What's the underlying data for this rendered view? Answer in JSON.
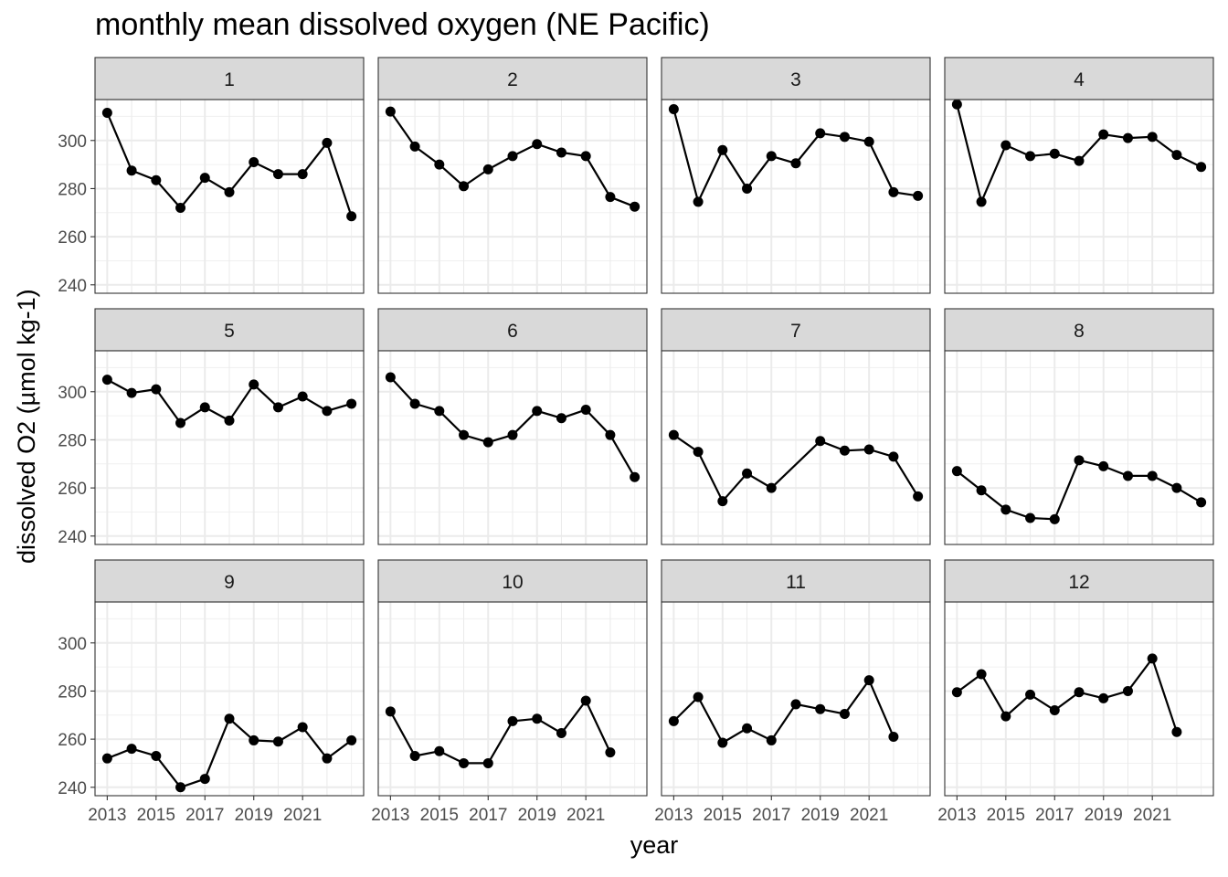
{
  "chart_data": {
    "type": "line",
    "title": "monthly mean dissolved oxygen (NE Pacific)",
    "xlabel": "year",
    "ylabel": "dissolved O2 (µmol kg-1)",
    "x": [
      2013,
      2014,
      2015,
      2016,
      2017,
      2018,
      2019,
      2020,
      2021,
      2022,
      2023
    ],
    "xticks": [
      2013,
      2015,
      2017,
      2019,
      2021
    ],
    "yticks": [
      240,
      260,
      280,
      300
    ],
    "xlim": [
      2012.5,
      2023.5
    ],
    "ylim": [
      236.5,
      317
    ],
    "grid": true,
    "markers": true,
    "facets": [
      {
        "label": "1",
        "x": [
          2013,
          2014,
          2015,
          2016,
          2017,
          2018,
          2019,
          2020,
          2021,
          2022,
          2023
        ],
        "values": [
          311.5,
          287.5,
          283.5,
          272,
          284.5,
          278.5,
          291,
          286,
          286,
          299,
          268.5
        ]
      },
      {
        "label": "2",
        "x": [
          2013,
          2014,
          2015,
          2016,
          2017,
          2018,
          2019,
          2020,
          2021,
          2022,
          2023
        ],
        "values": [
          312,
          297.5,
          290,
          281,
          288,
          293.5,
          298.5,
          295,
          293.5,
          276.5,
          272.5
        ]
      },
      {
        "label": "3",
        "x": [
          2013,
          2014,
          2015,
          2016,
          2017,
          2018,
          2019,
          2020,
          2021,
          2022,
          2023
        ],
        "values": [
          313,
          274.5,
          296,
          280,
          293.5,
          290.5,
          303,
          301.5,
          299.5,
          278.5,
          277
        ]
      },
      {
        "label": "4",
        "x": [
          2013,
          2014,
          2015,
          2016,
          2017,
          2018,
          2019,
          2020,
          2021,
          2022,
          2023
        ],
        "values": [
          315,
          274.5,
          298,
          293.5,
          294.5,
          291.5,
          302.5,
          301,
          301.5,
          294,
          289
        ]
      },
      {
        "label": "5",
        "x": [
          2013,
          2014,
          2015,
          2016,
          2017,
          2018,
          2019,
          2020,
          2021,
          2022,
          2023
        ],
        "values": [
          305,
          299.5,
          301,
          287,
          293.5,
          288,
          303,
          293.5,
          298,
          292,
          295
        ]
      },
      {
        "label": "6",
        "x": [
          2013,
          2014,
          2015,
          2016,
          2017,
          2018,
          2019,
          2020,
          2021,
          2022,
          2023
        ],
        "values": [
          306,
          295,
          292,
          282,
          279,
          282,
          292,
          289,
          292.5,
          282,
          264.5
        ]
      },
      {
        "label": "7",
        "x": [
          2013,
          2014,
          2015,
          2016,
          2017,
          2019,
          2020,
          2021,
          2022,
          2023
        ],
        "values": [
          282,
          275,
          254.5,
          266,
          260,
          279.5,
          275.5,
          276,
          273,
          256.5
        ]
      },
      {
        "label": "8",
        "x": [
          2013,
          2014,
          2015,
          2016,
          2017,
          2018,
          2019,
          2020,
          2021,
          2022,
          2023
        ],
        "values": [
          267,
          259,
          251,
          247.5,
          247,
          271.5,
          269,
          265,
          265,
          260,
          254
        ]
      },
      {
        "label": "9",
        "x": [
          2013,
          2014,
          2015,
          2016,
          2017,
          2018,
          2019,
          2020,
          2021,
          2022,
          2023
        ],
        "values": [
          252,
          256,
          253,
          240,
          243.5,
          268.5,
          259.5,
          259,
          265,
          252,
          259.5
        ]
      },
      {
        "label": "10",
        "x": [
          2013,
          2014,
          2015,
          2016,
          2017,
          2018,
          2019,
          2020,
          2021,
          2022
        ],
        "values": [
          271.5,
          253,
          255,
          250,
          250,
          267.5,
          268.5,
          262.5,
          276,
          254.5
        ]
      },
      {
        "label": "11",
        "x": [
          2013,
          2014,
          2015,
          2016,
          2017,
          2018,
          2019,
          2020,
          2021,
          2022
        ],
        "values": [
          267.5,
          277.5,
          258.5,
          264.5,
          259.5,
          274.5,
          272.5,
          270.5,
          284.5,
          261
        ]
      },
      {
        "label": "12",
        "x": [
          2013,
          2014,
          2015,
          2016,
          2017,
          2018,
          2019,
          2020,
          2021,
          2022
        ],
        "values": [
          279.5,
          287,
          269.5,
          278.5,
          272,
          279.5,
          277,
          280,
          293.5,
          263
        ]
      }
    ]
  }
}
